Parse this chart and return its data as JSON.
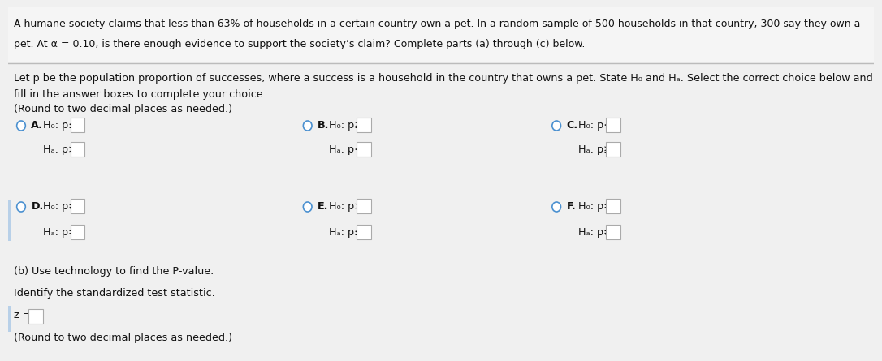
{
  "title_line1": "A humane society claims that less than 63% of households in a certain country own a pet. In a random sample of 500 households in that country, 300 say they own a",
  "title_line2": "pet. At α = 0.10, is there enough evidence to support the society’s claim? Complete parts (a) through (c) below.",
  "para1": "Let p be the population proportion of successes, where a success is a household in the country that owns a pet. State H₀ and Hₐ. Select the correct choice below and",
  "para2": "fill in the answer boxes to complete your choice.",
  "para3": "(Round to two decimal places as needed.)",
  "options": [
    {
      "label": "A.",
      "h0": "H₀: p≤",
      "ha": "Hₐ: p>"
    },
    {
      "label": "B.",
      "h0": "H₀: p≥",
      "ha": "Hₐ: p<"
    },
    {
      "label": "C.",
      "h0": "H₀: p<",
      "ha": "Hₐ: p≥"
    },
    {
      "label": "D.",
      "h0": "H₀: p≠",
      "ha": "Hₐ: p="
    },
    {
      "label": "E.",
      "h0": "H₀: p>",
      "ha": "Hₐ: p≤"
    },
    {
      "label": "F.",
      "h0": "H₀: p=",
      "ha": "Hₐ: p≠"
    }
  ],
  "part_b": "(b) Use technology to find the P-value.",
  "part_c_intro": "Identify the standardized test statistic.",
  "part_c_eq": "z =",
  "part_c_note": "(Round to two decimal places as needed.)",
  "bg_top": "#f5f5f5",
  "bg_main": "#f0f0f0",
  "text_color": "#111111",
  "divider_color": "#bbbbbb",
  "radio_edge": "#4a90d0",
  "box_edge": "#aaaaaa",
  "left_bar_color": "#b8d0e8"
}
